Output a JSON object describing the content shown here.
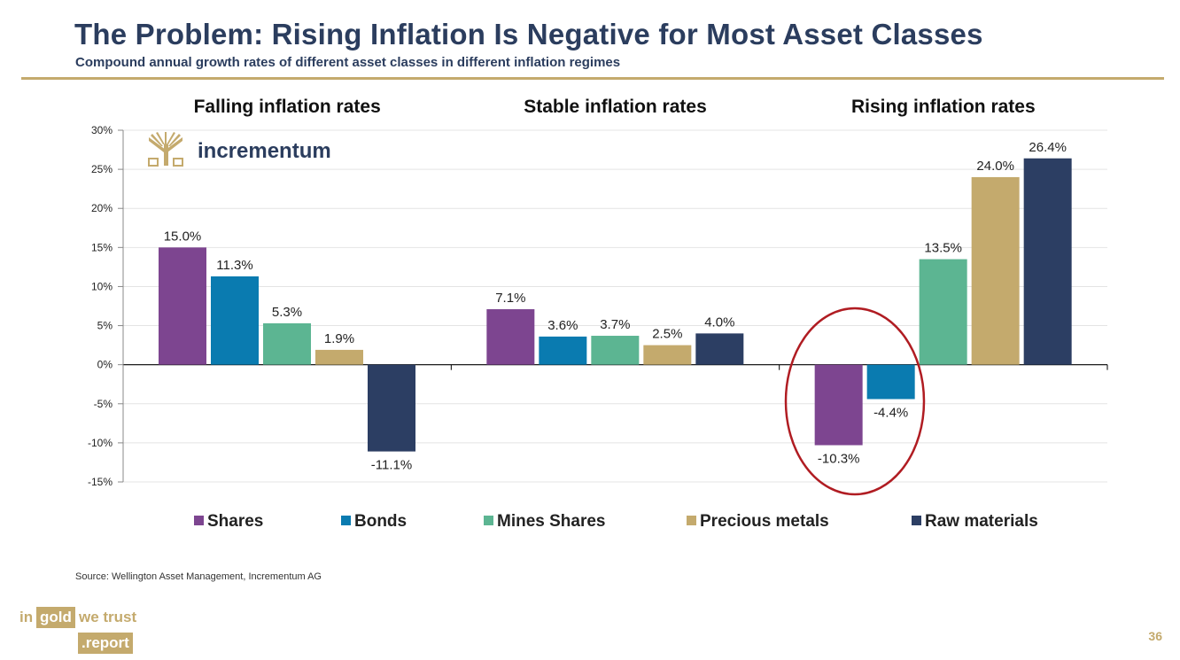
{
  "header": {
    "title": "The Problem: Rising Inflation Is Negative for Most Asset Classes",
    "subtitle": "Compound annual growth rates of different asset classes in different inflation regimes"
  },
  "footer": {
    "source": "Source: Wellington Asset Management, Incrementum AG",
    "page_number": "36",
    "brand_in": "in",
    "brand_gold": "gold",
    "brand_we_trust": "we trust",
    "brand_report": ".report"
  },
  "watermark": {
    "text": "incrementum"
  },
  "colors": {
    "title": "#2b3d5e",
    "gold": "#c4aa6d",
    "highlight": "#b01c22"
  },
  "chart_data": {
    "type": "bar",
    "categories": [
      "Falling inflation rates",
      "Stable inflation rates",
      "Rising inflation rates"
    ],
    "series": [
      {
        "name": "Shares",
        "color": "#7d4590",
        "values": [
          15.0,
          7.1,
          -10.3
        ]
      },
      {
        "name": "Bonds",
        "color": "#0a7bb0",
        "values": [
          11.3,
          3.6,
          -4.4
        ]
      },
      {
        "name": "Mines Shares",
        "color": "#5cb592",
        "values": [
          5.3,
          3.7,
          13.5
        ]
      },
      {
        "name": "Precious metals",
        "color": "#c4aa6d",
        "values": [
          1.9,
          2.5,
          24.0
        ]
      },
      {
        "name": "Raw materials",
        "color": "#2c3e63",
        "values": [
          -11.1,
          4.0,
          26.4
        ]
      }
    ],
    "value_labels": [
      [
        "15.0%",
        "7.1%",
        "-10.3%"
      ],
      [
        "11.3%",
        "3.6%",
        "-4.4%"
      ],
      [
        "5.3%",
        "3.7%",
        "13.5%"
      ],
      [
        "1.9%",
        "2.5%",
        "24.0%"
      ],
      [
        "-11.1%",
        "4.0%",
        "26.4%"
      ]
    ],
    "yticks": [
      30,
      25,
      20,
      15,
      10,
      5,
      0,
      -5,
      -10,
      -15
    ],
    "ytick_labels": [
      "30%",
      "25%",
      "20%",
      "15%",
      "10%",
      "5%",
      "0%",
      "-5%",
      "-10%",
      "-15%"
    ],
    "ylim": [
      -15,
      30
    ],
    "grid": true,
    "legend": "bottom",
    "annotation": "ellipse highlighting negative Shares and Bonds returns under rising inflation"
  }
}
